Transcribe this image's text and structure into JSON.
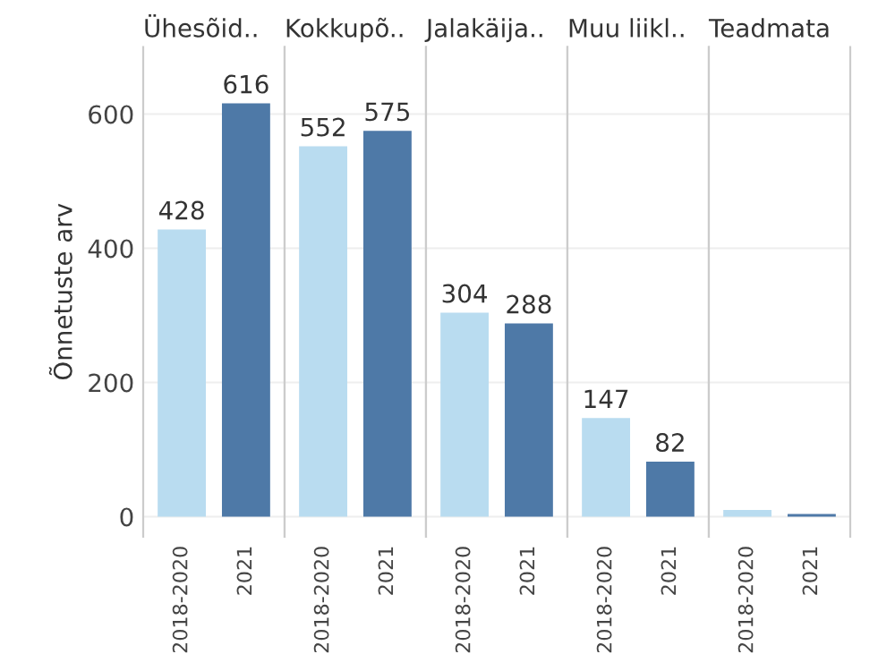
{
  "chart_data": [
    {
      "type": "bar",
      "title": "Ühesõid..",
      "ylabel": "Õnnetuste arv",
      "categories": [
        "2018-2020",
        "2021"
      ],
      "values": [
        428,
        616
      ],
      "colors": [
        "#b9dcf0",
        "#4e79a7"
      ],
      "value_labels": [
        "428",
        "616"
      ],
      "ylim": [
        -30,
        700
      ],
      "yticks": [
        0,
        200,
        400,
        600
      ],
      "grid": "y"
    },
    {
      "type": "bar",
      "title": "Kokkupõ..",
      "categories": [
        "2018-2020",
        "2021"
      ],
      "values": [
        552,
        575
      ],
      "colors": [
        "#b9dcf0",
        "#4e79a7"
      ],
      "value_labels": [
        "552",
        "575"
      ],
      "ylim": [
        -30,
        700
      ],
      "yticks": [
        0,
        200,
        400,
        600
      ],
      "grid": "y",
      "tick_labels": "x"
    },
    {
      "type": "bar",
      "title": "Jalakäija..",
      "categories": [
        "2018-2020",
        "2021"
      ],
      "values": [
        304,
        288
      ],
      "colors": [
        "#b9dcf0",
        "#4e79a7"
      ],
      "value_labels": [
        "304",
        "288"
      ],
      "ylim": [
        -30,
        700
      ],
      "yticks": [
        0,
        200,
        400,
        600
      ],
      "grid": "y",
      "tick_labels": "x"
    },
    {
      "type": "bar",
      "title": "Muu liikl..",
      "categories": [
        "2018-2020",
        "2021"
      ],
      "values": [
        147,
        82
      ],
      "colors": [
        "#b9dcf0",
        "#4e79a7"
      ],
      "value_labels": [
        "147",
        "82"
      ],
      "ylim": [
        -30,
        700
      ],
      "yticks": [
        0,
        200,
        400,
        600
      ],
      "grid": "y",
      "tick_labels": "x"
    },
    {
      "type": "bar",
      "title": "Teadmata",
      "categories": [
        "2018-2020",
        "2021"
      ],
      "values": [
        10,
        4
      ],
      "colors": [
        "#b9dcf0",
        "#4e79a7"
      ],
      "value_labels": [
        null,
        null
      ],
      "ylim": [
        -30,
        700
      ],
      "yticks": [
        0,
        200,
        400,
        600
      ],
      "grid": "y",
      "tick_labels": "x"
    }
  ]
}
